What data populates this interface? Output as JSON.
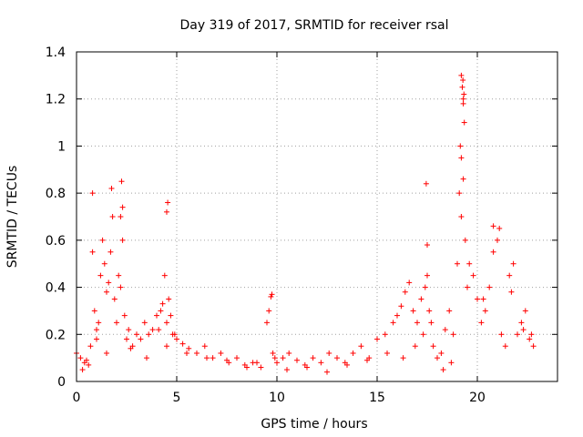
{
  "chart_data": {
    "type": "scatter",
    "title": "Day 319 of 2017, SRMTID for receiver rsal",
    "xlabel": "GPS time / hours",
    "ylabel": "SRMTID / TECUs",
    "xlim": [
      0,
      24
    ],
    "ylim": [
      0,
      1.4
    ],
    "xticks": [
      0,
      5,
      10,
      15,
      20
    ],
    "xtick_labels": [
      "0",
      "5",
      "10",
      "15",
      "20"
    ],
    "yticks": [
      0,
      0.2,
      0.4,
      0.6,
      0.8,
      1.0,
      1.2,
      1.4
    ],
    "ytick_labels": [
      "0",
      "0.2",
      "0.4",
      "0.6",
      "0.8",
      "1",
      "1.2",
      "1.4"
    ],
    "grid": true,
    "marker": "+",
    "color": "#ff0000",
    "series": [
      {
        "name": "SRMTID",
        "x": [
          0.0,
          0.2,
          0.4,
          0.5,
          0.7,
          0.8,
          0.9,
          1.0,
          1.1,
          1.2,
          1.3,
          1.4,
          1.5,
          1.6,
          1.7,
          1.8,
          1.9,
          2.0,
          2.1,
          2.2,
          2.3,
          2.4,
          2.5,
          2.6,
          2.8,
          3.0,
          3.2,
          3.4,
          3.6,
          3.8,
          4.0,
          4.2,
          4.3,
          4.4,
          4.5,
          4.6,
          4.7,
          4.8,
          5.0,
          5.3,
          5.6,
          6.0,
          6.4,
          6.8,
          7.2,
          7.6,
          8.0,
          8.4,
          8.8,
          9.2,
          9.5,
          9.6,
          9.7,
          9.8,
          10.0,
          10.3,
          10.6,
          11.0,
          11.4,
          11.8,
          12.2,
          12.6,
          13.0,
          13.4,
          13.8,
          14.2,
          14.6,
          15.0,
          15.4,
          15.8,
          16.0,
          16.2,
          16.4,
          16.6,
          16.8,
          17.0,
          17.2,
          17.4,
          17.5,
          17.6,
          17.8,
          18.0,
          18.2,
          18.4,
          18.6,
          18.8,
          19.0,
          19.1,
          19.2,
          19.3,
          19.4,
          19.5,
          19.6,
          19.8,
          20.0,
          20.2,
          20.4,
          20.6,
          20.8,
          21.0,
          21.2,
          21.4,
          21.6,
          21.8,
          22.0,
          22.2,
          22.4,
          22.6,
          22.8,
          0.3,
          0.6,
          1.0,
          1.5,
          2.2,
          2.7,
          3.5,
          4.1,
          4.5,
          4.9,
          5.5,
          6.5,
          7.5,
          8.5,
          9.0,
          9.9,
          10.5,
          11.5,
          12.5,
          13.5,
          14.5,
          15.5,
          16.3,
          16.9,
          17.3,
          17.7,
          18.3,
          18.7,
          19.2,
          19.25,
          19.3,
          19.35,
          19.15,
          19.28,
          19.33,
          20.3,
          21.1,
          21.7,
          22.3,
          22.7,
          0.8,
          2.25,
          4.55,
          17.45,
          19.3,
          20.8,
          1.75,
          2.3,
          9.75,
          4.5,
          17.5,
          19.2
        ],
        "y": [
          0.12,
          0.1,
          0.08,
          0.09,
          0.15,
          0.55,
          0.3,
          0.22,
          0.25,
          0.45,
          0.6,
          0.5,
          0.38,
          0.42,
          0.55,
          0.7,
          0.35,
          0.25,
          0.45,
          0.7,
          0.6,
          0.28,
          0.18,
          0.22,
          0.15,
          0.2,
          0.18,
          0.25,
          0.2,
          0.22,
          0.28,
          0.3,
          0.33,
          0.45,
          0.25,
          0.35,
          0.28,
          0.2,
          0.18,
          0.16,
          0.14,
          0.12,
          0.15,
          0.1,
          0.12,
          0.08,
          0.1,
          0.07,
          0.08,
          0.06,
          0.25,
          0.3,
          0.36,
          0.12,
          0.08,
          0.1,
          0.12,
          0.09,
          0.07,
          0.1,
          0.08,
          0.12,
          0.1,
          0.08,
          0.12,
          0.15,
          0.1,
          0.18,
          0.2,
          0.25,
          0.28,
          0.32,
          0.38,
          0.42,
          0.3,
          0.25,
          0.35,
          0.4,
          0.45,
          0.3,
          0.15,
          0.1,
          0.12,
          0.22,
          0.3,
          0.2,
          0.5,
          0.8,
          0.95,
          1.2,
          0.6,
          0.4,
          0.5,
          0.45,
          0.35,
          0.25,
          0.3,
          0.4,
          0.55,
          0.6,
          0.2,
          0.15,
          0.45,
          0.5,
          0.2,
          0.25,
          0.3,
          0.18,
          0.15,
          0.05,
          0.07,
          0.18,
          0.12,
          0.4,
          0.14,
          0.1,
          0.22,
          0.15,
          0.2,
          0.12,
          0.1,
          0.09,
          0.06,
          0.08,
          0.1,
          0.05,
          0.06,
          0.04,
          0.07,
          0.09,
          0.12,
          0.1,
          0.15,
          0.2,
          0.25,
          0.05,
          0.08,
          1.3,
          1.25,
          1.18,
          1.1,
          1.0,
          1.28,
          1.22,
          0.35,
          0.65,
          0.38,
          0.22,
          0.2,
          0.8,
          0.85,
          0.76,
          0.84,
          0.86,
          0.66,
          0.82,
          0.74,
          0.37,
          0.72,
          0.58,
          0.7
        ]
      }
    ]
  }
}
